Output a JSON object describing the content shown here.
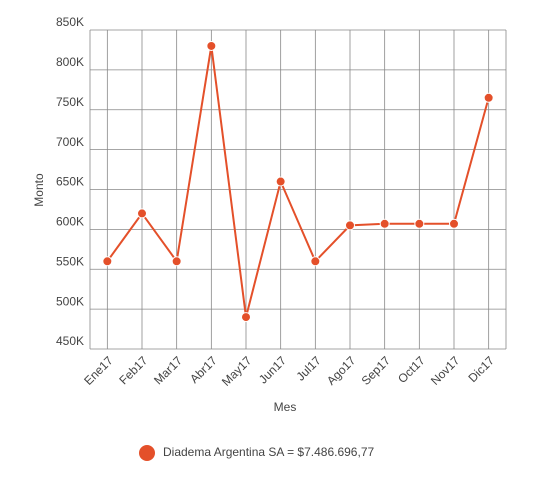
{
  "chart_data": {
    "type": "line",
    "x_label": "Mes",
    "y_label": "Monto",
    "categories": [
      "Ene17",
      "Feb17",
      "Mar17",
      "Abr17",
      "May17",
      "Jun17",
      "Jul17",
      "Ago17",
      "Sep17",
      "Oct17",
      "Nov17",
      "Dic17"
    ],
    "series": [
      {
        "name": "Diadema Argentina SA = $7.486.696,77",
        "color": "#e4502a",
        "values": [
          560000,
          620000,
          560000,
          830000,
          490000,
          660000,
          560000,
          605000,
          607000,
          607000,
          607000,
          765000
        ]
      }
    ],
    "ylim": [
      450000,
      850000
    ],
    "yticks": [
      {
        "value": 450000,
        "label": "450K"
      },
      {
        "value": 500000,
        "label": "500K"
      },
      {
        "value": 550000,
        "label": "550K"
      },
      {
        "value": 600000,
        "label": "600K"
      },
      {
        "value": 650000,
        "label": "650K"
      },
      {
        "value": 700000,
        "label": "700K"
      },
      {
        "value": 750000,
        "label": "750K"
      },
      {
        "value": 800000,
        "label": "800K"
      },
      {
        "value": 850000,
        "label": "850K"
      }
    ],
    "grid": true,
    "legend": "bottom"
  }
}
